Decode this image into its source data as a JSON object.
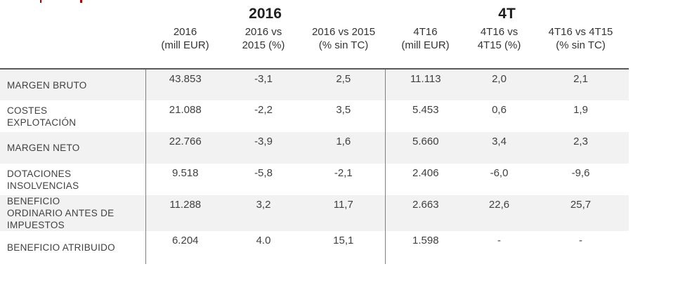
{
  "table": {
    "group_headers": [
      {
        "label": "2016",
        "span": 3
      },
      {
        "label": "4T",
        "span": 3
      }
    ],
    "columns": [
      {
        "line1": "2016",
        "line2": "(mill EUR)"
      },
      {
        "line1": "2016 vs",
        "line2": "2015 (%)"
      },
      {
        "line1": "2016 vs 2015",
        "line2": "(% sin TC)"
      },
      {
        "line1": "4T16",
        "line2": "(mill EUR)"
      },
      {
        "line1": "4T16 vs",
        "line2": "4T15 (%)"
      },
      {
        "line1": "4T16 vs 4T15",
        "line2": "(% sin TC)"
      }
    ],
    "rows": [
      {
        "label": "MARGEN BRUTO",
        "values": [
          "43.853",
          "-3,1",
          "2,5",
          "11.113",
          "2,0",
          "2,1"
        ],
        "striped": true
      },
      {
        "label": "COSTES EXPLOTACIÓN",
        "values": [
          "21.088",
          "-2,2",
          "3,5",
          "5.453",
          "0,6",
          "1,9"
        ],
        "striped": false
      },
      {
        "label": "MARGEN NETO",
        "values": [
          "22.766",
          "-3,9",
          "1,6",
          "5.660",
          "3,4",
          "2,3"
        ],
        "striped": true
      },
      {
        "label": "DOTACIONES INSOLVENCIAS",
        "values": [
          "9.518",
          "-5,8",
          "-2,1",
          "2.406",
          "-6,0",
          "-9,6"
        ],
        "striped": false
      },
      {
        "label": "BENEFICIO ORDINARIO ANTES DE IMPUESTOS",
        "values": [
          "11.288",
          "3,2",
          "11,7",
          "2.663",
          "22,6",
          "25,7"
        ],
        "striped": true
      },
      {
        "label": "BENEFICIO ATRIBUIDO",
        "values": [
          "6.204",
          "4.0",
          "15,1",
          "1.598",
          "-",
          "-"
        ],
        "striped": false
      }
    ],
    "colors": {
      "stripe": "#f2f2f2",
      "top_border": "#595959",
      "divider": "#7f7f7f",
      "text": "#404040",
      "header_text": "#333333",
      "group_header_text": "#1f1f1f",
      "remnant_red": "#b30000"
    }
  }
}
